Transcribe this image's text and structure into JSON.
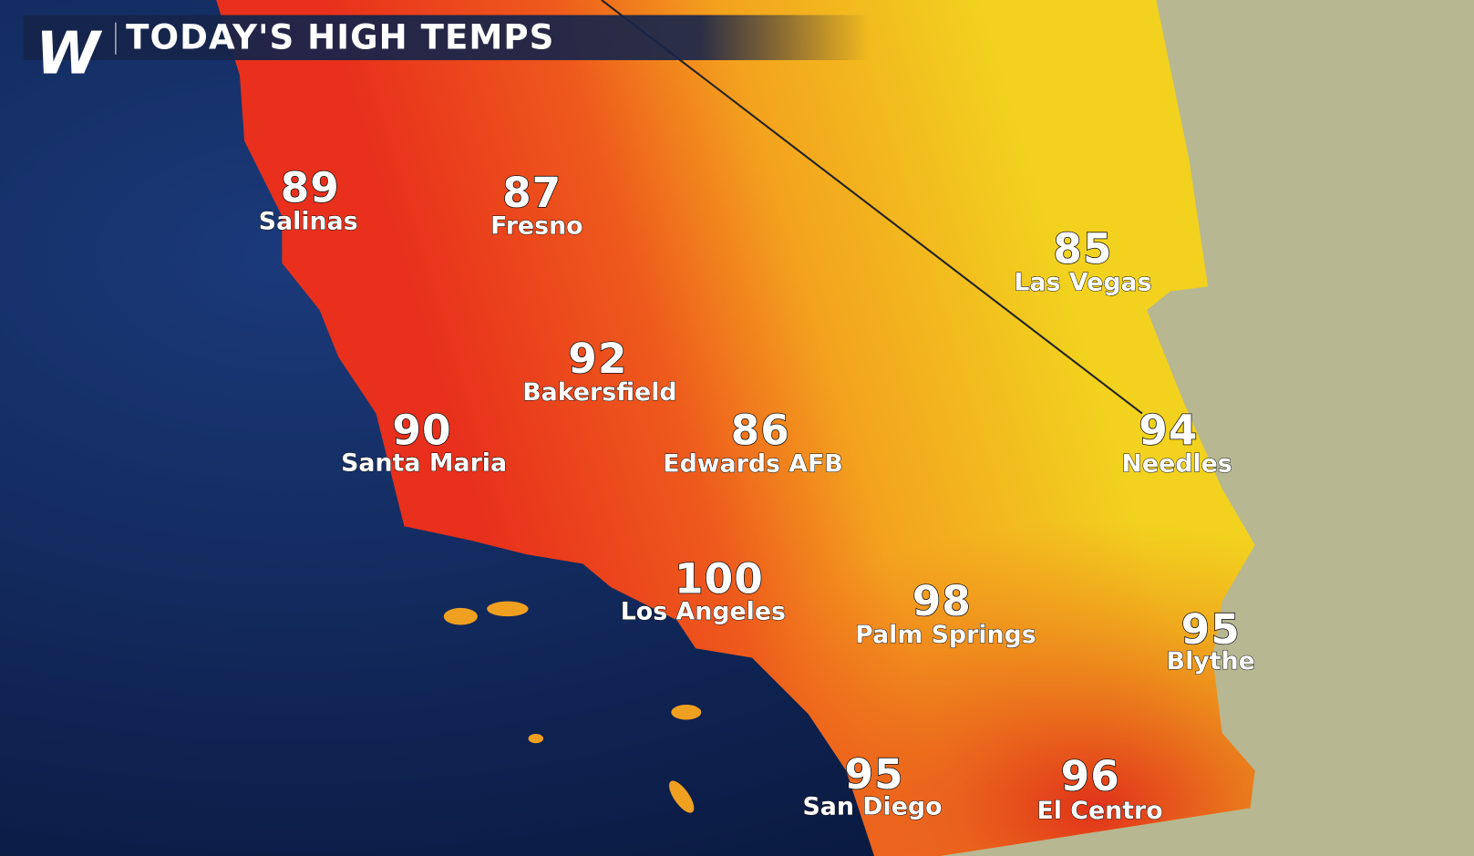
{
  "header": {
    "logo_letter": "W",
    "title": "TODAY'S HIGH TEMPS"
  },
  "colors": {
    "ocean": "#0e2456",
    "hot": "#e8301c",
    "warm": "#f08a1c",
    "mild": "#f2c61e",
    "neighbor_land": "#b9b894",
    "banner": "#15244a"
  },
  "cities": [
    {
      "name": "Salinas",
      "temp": "89"
    },
    {
      "name": "Fresno",
      "temp": "87"
    },
    {
      "name": "Las Vegas",
      "temp": "85"
    },
    {
      "name": "Bakersfield",
      "temp": "92"
    },
    {
      "name": "Santa Maria",
      "temp": "90"
    },
    {
      "name": "Edwards AFB",
      "temp": "86"
    },
    {
      "name": "Needles",
      "temp": "94"
    },
    {
      "name": "Los Angeles",
      "temp": "100"
    },
    {
      "name": "Palm Springs",
      "temp": "98"
    },
    {
      "name": "Blythe",
      "temp": "95"
    },
    {
      "name": "San Diego",
      "temp": "95"
    },
    {
      "name": "El Centro",
      "temp": "96"
    }
  ]
}
